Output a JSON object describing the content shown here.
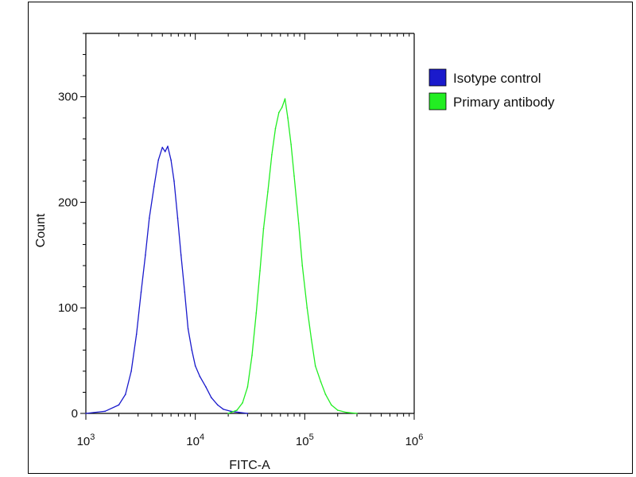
{
  "chart_data": {
    "type": "histogram",
    "xlabel": "FITC-A",
    "ylabel": "Count",
    "xscale": "log",
    "xlim": [
      1000,
      1000000
    ],
    "ylim": [
      0,
      360
    ],
    "x_ticks": [
      {
        "value": 1000,
        "base": "10",
        "exp": "3"
      },
      {
        "value": 10000,
        "base": "10",
        "exp": "4"
      },
      {
        "value": 100000,
        "base": "10",
        "exp": "5"
      },
      {
        "value": 1000000,
        "base": "10",
        "exp": "6"
      }
    ],
    "y_ticks": [
      0,
      100,
      200,
      300
    ],
    "legend_position": "top-right",
    "grid": false,
    "series": [
      {
        "name": "Isotype control",
        "color": "#1a1acc",
        "x": [
          1000,
          1500,
          2000,
          2300,
          2600,
          2900,
          3200,
          3500,
          3800,
          4200,
          4600,
          5000,
          5300,
          5600,
          6000,
          6400,
          6900,
          7400,
          8000,
          8600,
          9300,
          10000,
          11000,
          12500,
          14000,
          16000,
          18000,
          21000,
          25000,
          30000
        ],
        "y": [
          0,
          2,
          8,
          18,
          40,
          75,
          115,
          150,
          185,
          215,
          240,
          252,
          248,
          253,
          240,
          220,
          185,
          150,
          115,
          80,
          60,
          45,
          35,
          25,
          15,
          8,
          4,
          2,
          1,
          0
        ]
      },
      {
        "name": "Primary antibody",
        "color": "#22ee22",
        "x": [
          20000,
          24000,
          27000,
          30000,
          33000,
          36000,
          39000,
          42000,
          46000,
          50000,
          54000,
          58000,
          62000,
          66000,
          70000,
          75000,
          80000,
          88000,
          95000,
          105000,
          115000,
          125000,
          140000,
          155000,
          175000,
          200000,
          240000,
          300000
        ],
        "y": [
          0,
          3,
          10,
          25,
          55,
          95,
          135,
          175,
          210,
          245,
          270,
          285,
          290,
          298,
          280,
          255,
          225,
          180,
          140,
          100,
          70,
          45,
          30,
          18,
          8,
          3,
          1,
          0
        ]
      }
    ]
  }
}
